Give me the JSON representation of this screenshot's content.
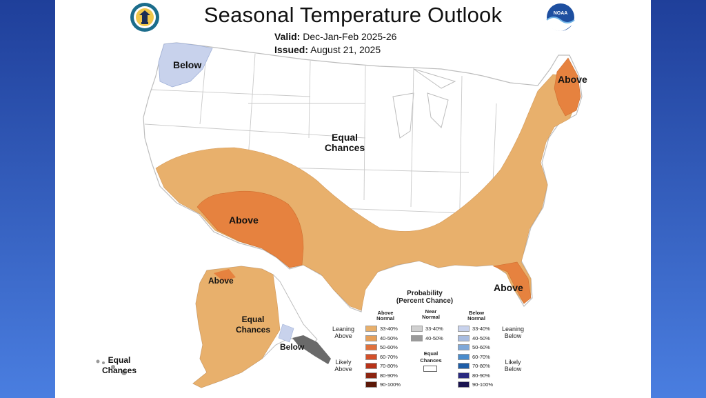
{
  "header": {
    "title": "Seasonal Temperature Outlook",
    "valid_label": "Valid:",
    "valid_value": "Dec-Jan-Feb 2025-26",
    "issued_label": "Issued:",
    "issued_value": "August 21, 2025"
  },
  "logos": {
    "left": "us-dept-of-commerce-seal",
    "right": "noaa-logo",
    "noaa_text": "NOAA"
  },
  "map_labels": {
    "below_nw": "Below",
    "above_ne": "Above",
    "equal_center_1": "Equal",
    "equal_center_2": "Chances",
    "above_sw": "Above",
    "above_fl": "Above",
    "above_ak": "Above",
    "equal_ak_1": "Equal",
    "equal_ak_2": "Chances",
    "below_ak": "Below",
    "equal_hi_1": "Equal",
    "equal_hi_2": "Chances"
  },
  "colors": {
    "above_33_40": "#e8b06c",
    "above_40_50": "#e6823f",
    "below_33_40": "#c8d2ec",
    "panel_bg": "#ffffff",
    "border": "#bdbdbd"
  },
  "legend": {
    "title_1": "Probability",
    "title_2": "(Percent Chance)",
    "col_above_1": "Above",
    "col_above_2": "Normal",
    "col_near_1": "Near",
    "col_near_2": "Normal",
    "col_below_1": "Below",
    "col_below_2": "Normal",
    "leaning_above_1": "Leaning",
    "leaning_above_2": "Above",
    "likely_above_1": "Likely",
    "likely_above_2": "Above",
    "leaning_below_1": "Leaning",
    "leaning_below_2": "Below",
    "likely_below_1": "Likely",
    "likely_below_2": "Below",
    "equal_1": "Equal",
    "equal_2": "Chances",
    "above_bins": [
      {
        "label": "33-40%",
        "color": "#e8b06c"
      },
      {
        "label": "40-50%",
        "color": "#e6a05a"
      },
      {
        "label": "50-60%",
        "color": "#e0703c"
      },
      {
        "label": "60-70%",
        "color": "#d4502a"
      },
      {
        "label": "70-80%",
        "color": "#b83218"
      },
      {
        "label": "80-90%",
        "color": "#8c2410"
      },
      {
        "label": "90-100%",
        "color": "#5c1808"
      }
    ],
    "near_bins": [
      {
        "label": "33-40%",
        "color": "#d0d0d0"
      },
      {
        "label": "40-50%",
        "color": "#9a9a9a"
      }
    ],
    "below_bins": [
      {
        "label": "33-40%",
        "color": "#c8d2ec"
      },
      {
        "label": "40-50%",
        "color": "#a8bce0"
      },
      {
        "label": "50-60%",
        "color": "#7fa8d8"
      },
      {
        "label": "60-70%",
        "color": "#4a8ccc"
      },
      {
        "label": "70-80%",
        "color": "#1e5ea8"
      },
      {
        "label": "80-90%",
        "color": "#2a2a80"
      },
      {
        "label": "90-100%",
        "color": "#1a1450"
      }
    ]
  }
}
